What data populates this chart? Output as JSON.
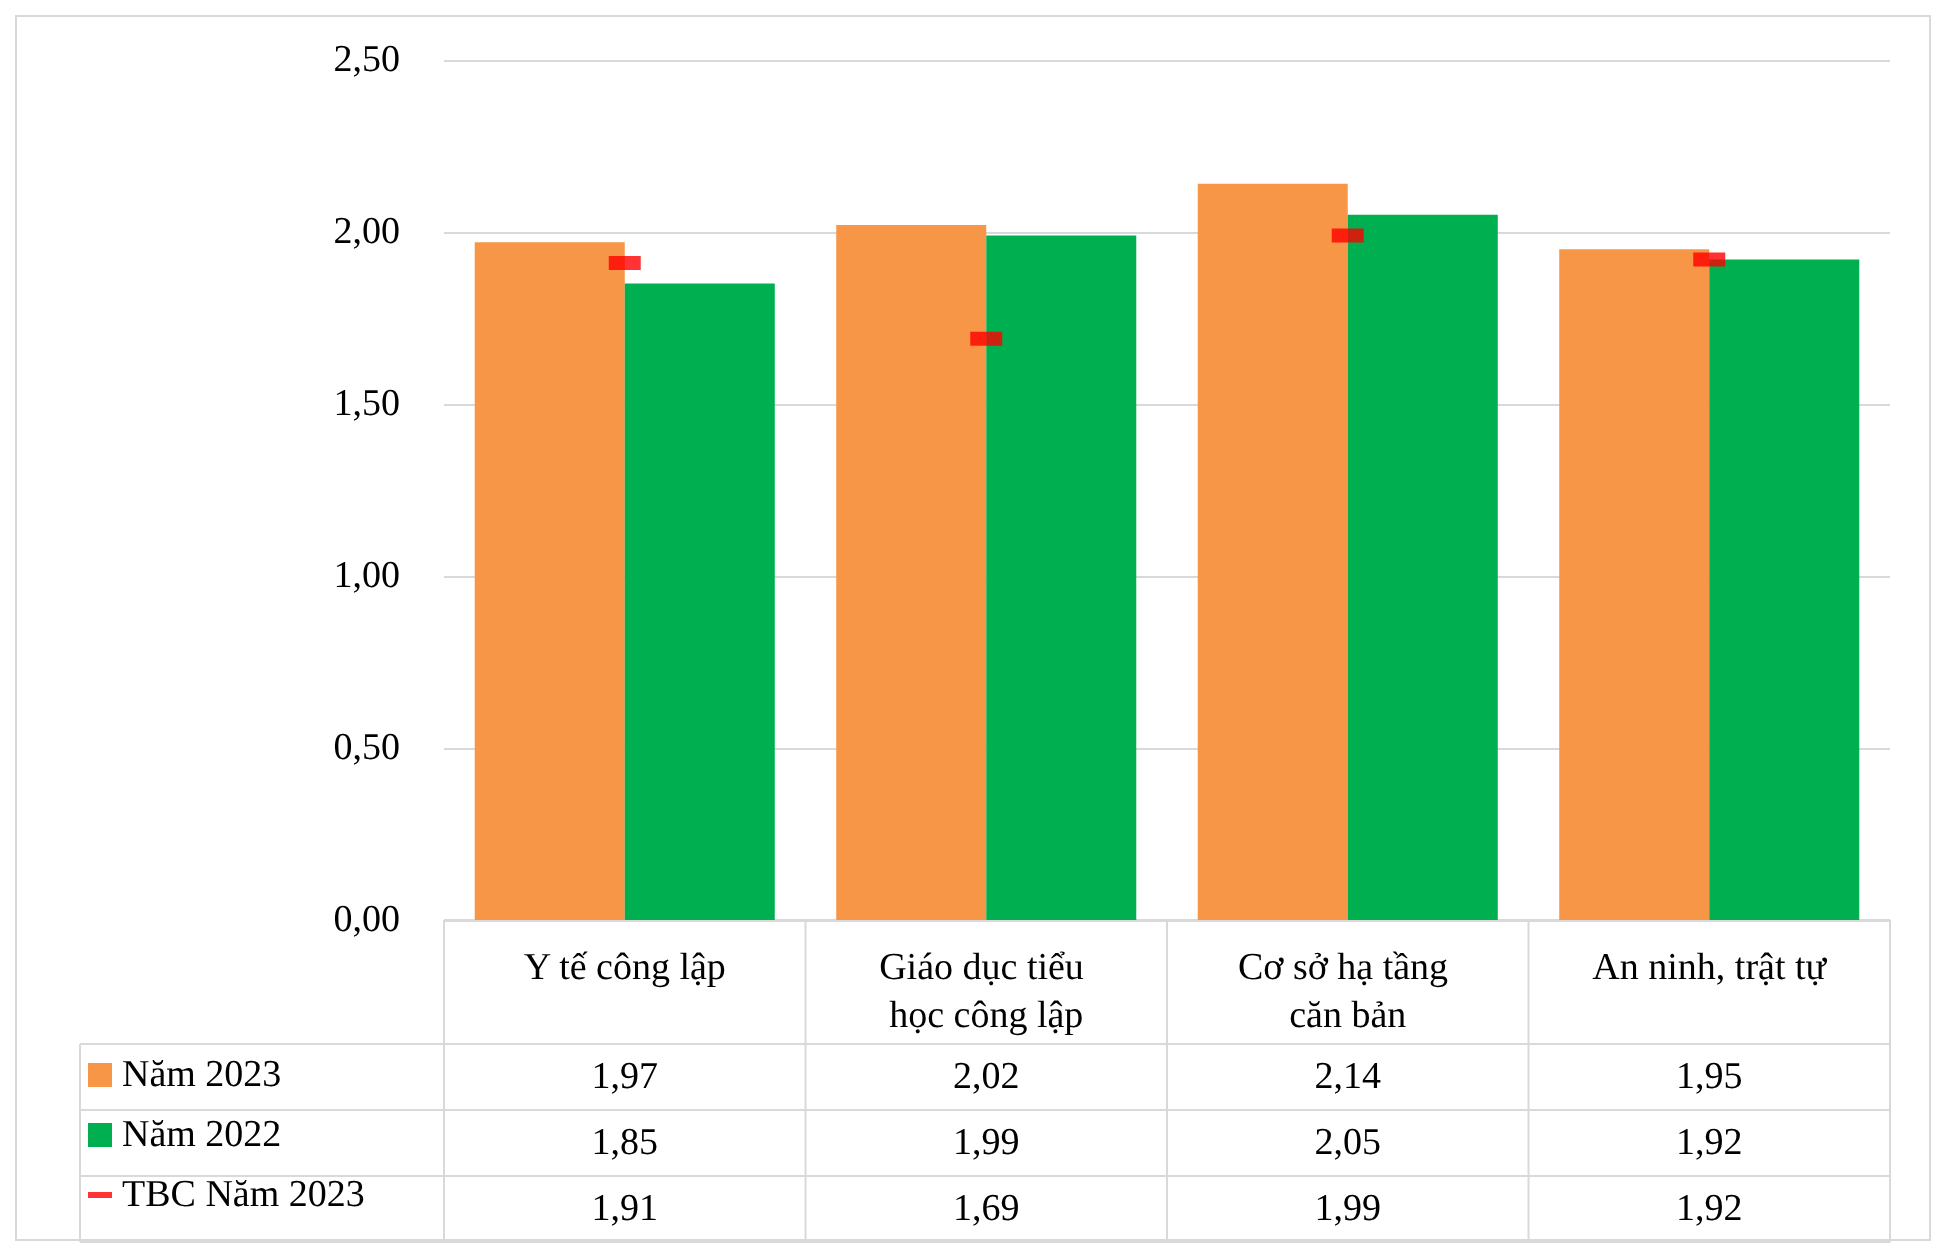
{
  "chart_data": {
    "type": "bar",
    "categories": [
      "Y tế công lập",
      "Giáo dục tiểu học công lập",
      "Cơ sở hạ tầng căn bản",
      "An ninh, trật tự"
    ],
    "series": [
      {
        "name": "Năm 2023",
        "color": "#f79646",
        "values": [
          1.97,
          2.02,
          2.14,
          1.95
        ],
        "value_labels": [
          "1,97",
          "2,02",
          "2,14",
          "1,95"
        ]
      },
      {
        "name": "Năm 2022",
        "color": "#00b050",
        "values": [
          1.85,
          1.99,
          2.05,
          1.92
        ],
        "value_labels": [
          "1,85",
          "1,99",
          "2,05",
          "1,92"
        ]
      },
      {
        "name": "TBC Năm 2023",
        "type": "scatter",
        "color": "#ff0000",
        "x": [
          "Y tế công lập",
          "Giáo dục tiểu học công lập",
          "Cơ sở hạ tầng căn bản",
          "An ninh, trật tự"
        ],
        "values": [
          1.91,
          1.69,
          1.99,
          1.92
        ],
        "value_labels": [
          "1,91",
          "1,69",
          "1,99",
          "1,92"
        ]
      }
    ],
    "ylim": [
      0,
      2.5
    ],
    "yticks": [
      {
        "value": 0,
        "label": "0,00"
      },
      {
        "value": 0.5,
        "label": "0,50"
      },
      {
        "value": 1,
        "label": "1,00"
      },
      {
        "value": 1.5,
        "label": "1,50"
      },
      {
        "value": 2,
        "label": "2,00"
      },
      {
        "value": 2.5,
        "label": "2,50"
      }
    ],
    "grid": "y",
    "legend": "bottom left"
  }
}
